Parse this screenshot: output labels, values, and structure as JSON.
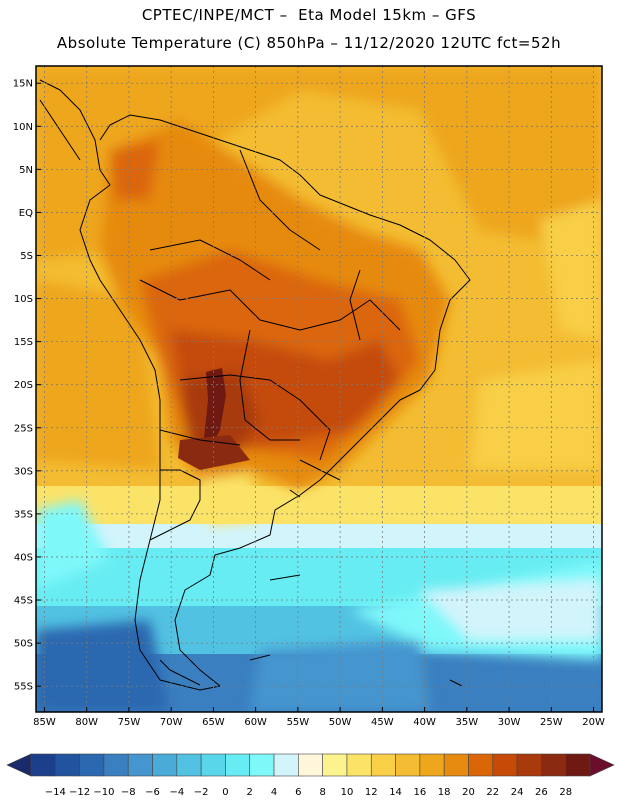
{
  "header": {
    "line1": "CPTEC/INPE/MCT –  Eta Model 15km – GFS",
    "line2": "Absolute Temperature (C) 850hPa – 11/12/2020 12UTC fct=52h"
  },
  "map": {
    "lat_labels": [
      "15N",
      "10N",
      "5N",
      "EQ",
      "5S",
      "10S",
      "15S",
      "20S",
      "25S",
      "30S",
      "35S",
      "40S",
      "45S",
      "50S",
      "55S"
    ],
    "lat_values": [
      15,
      10,
      5,
      0,
      -5,
      -10,
      -15,
      -20,
      -25,
      -30,
      -35,
      -40,
      -45,
      -50,
      -55
    ],
    "lon_labels": [
      "85W",
      "80W",
      "75W",
      "70W",
      "65W",
      "60W",
      "55W",
      "50W",
      "45W",
      "40W",
      "35W",
      "30W",
      "25W",
      "20W"
    ],
    "lon_values": [
      -85,
      -80,
      -75,
      -70,
      -65,
      -60,
      -55,
      -50,
      -45,
      -40,
      -35,
      -30,
      -25,
      -20
    ],
    "lat_range": [
      -58,
      17
    ],
    "lon_range": [
      -86,
      -19
    ]
  },
  "colorbar": {
    "labels": [
      "-14",
      "-12",
      "-10",
      "-8",
      "-6",
      "-4",
      "-2",
      "0",
      "2",
      "4",
      "6",
      "8",
      "10",
      "12",
      "14",
      "16",
      "18",
      "20",
      "22",
      "24",
      "26",
      "28"
    ],
    "colors": [
      "#1c3f8c",
      "#22539f",
      "#2b68b0",
      "#3a7fc0",
      "#4595cf",
      "#4aaad8",
      "#52c2e2",
      "#5ad6ea",
      "#66ecf2",
      "#7ff8fa",
      "#d2f4fb",
      "#fff6dc",
      "#fdf38e",
      "#fbe368",
      "#f8cf47",
      "#f3bc32",
      "#eea61c",
      "#e68a10",
      "#db6608",
      "#c54b07",
      "#a83a0c",
      "#8a2a10",
      "#6e1a12"
    ],
    "under_color": "#1b2a6b",
    "over_color": "#6b0d2b"
  }
}
